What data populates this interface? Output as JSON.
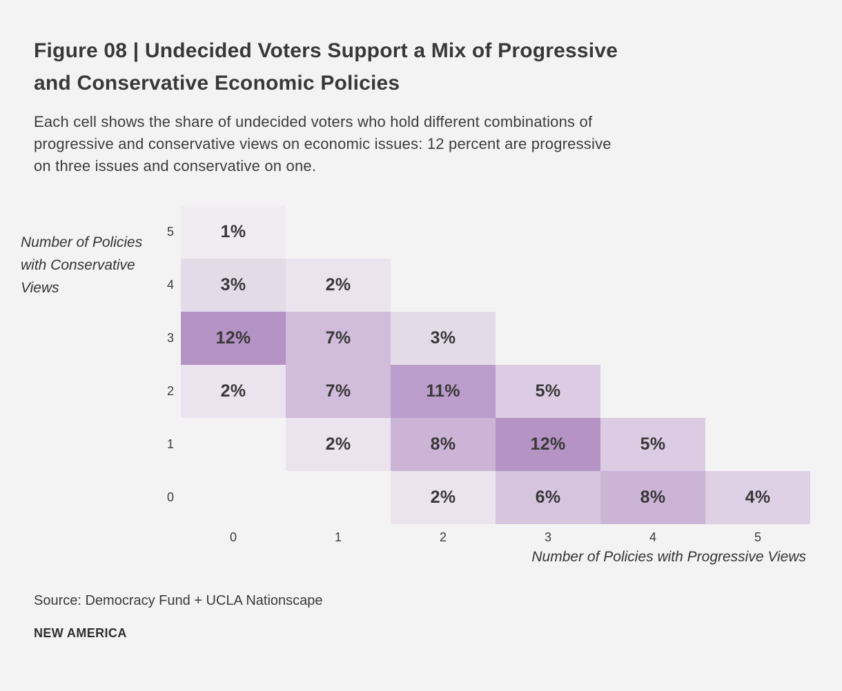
{
  "page": {
    "background": "#f4f3f4",
    "text_color": "#3a3a3a"
  },
  "header": {
    "title_lines": [
      "Figure 08 | Undecided Voters Support a Mix of Progressive",
      "and Conservative Economic Policies"
    ],
    "subtitle_lines": [
      "Each cell shows the share of undecided voters who hold different combinations of",
      "progressive and conservative views on economic issues: 12 percent are progressive",
      "on three issues and conservative on one."
    ]
  },
  "chart_data": {
    "type": "heatmap",
    "x_axis_label": "Number of Policies with Progressive Views",
    "y_axis_label_lines": [
      "Number of Policies",
      "with Conservative",
      "Views"
    ],
    "x_ticks": [
      "0",
      "1",
      "2",
      "3",
      "4",
      "5"
    ],
    "y_ticks_top_to_bottom": [
      "5",
      "4",
      "3",
      "2",
      "1",
      "0"
    ],
    "value_unit": "%",
    "cells": [
      {
        "progressive": 0,
        "conservative": 5,
        "value": 1,
        "label": "1%"
      },
      {
        "progressive": 0,
        "conservative": 4,
        "value": 3,
        "label": "3%"
      },
      {
        "progressive": 1,
        "conservative": 4,
        "value": 2,
        "label": "2%"
      },
      {
        "progressive": 0,
        "conservative": 3,
        "value": 12,
        "label": "12%"
      },
      {
        "progressive": 1,
        "conservative": 3,
        "value": 7,
        "label": "7%"
      },
      {
        "progressive": 2,
        "conservative": 3,
        "value": 3,
        "label": "3%"
      },
      {
        "progressive": 0,
        "conservative": 2,
        "value": 2,
        "label": "2%"
      },
      {
        "progressive": 1,
        "conservative": 2,
        "value": 7,
        "label": "7%"
      },
      {
        "progressive": 2,
        "conservative": 2,
        "value": 11,
        "label": "11%"
      },
      {
        "progressive": 3,
        "conservative": 2,
        "value": 5,
        "label": "5%"
      },
      {
        "progressive": 1,
        "conservative": 1,
        "value": 2,
        "label": "2%"
      },
      {
        "progressive": 2,
        "conservative": 1,
        "value": 8,
        "label": "8%"
      },
      {
        "progressive": 3,
        "conservative": 1,
        "value": 12,
        "label": "12%"
      },
      {
        "progressive": 4,
        "conservative": 1,
        "value": 5,
        "label": "5%"
      },
      {
        "progressive": 2,
        "conservative": 0,
        "value": 2,
        "label": "2%"
      },
      {
        "progressive": 3,
        "conservative": 0,
        "value": 6,
        "label": "6%"
      },
      {
        "progressive": 4,
        "conservative": 0,
        "value": 8,
        "label": "8%"
      },
      {
        "progressive": 5,
        "conservative": 0,
        "value": 4,
        "label": "4%"
      }
    ],
    "color_by_value": {
      "1": "#f1ecf2",
      "2": "#ebe3ee",
      "3": "#e4dbe9",
      "4": "#ded0e5",
      "5": "#dbcbe3",
      "6": "#d6c4df",
      "7": "#d2bcdc",
      "8": "#ccb4d7",
      "11": "#bb9cca",
      "12": "#b593c5"
    }
  },
  "footer": {
    "source": "Source: Democracy Fund + UCLA Nationscape",
    "brand": "NEW AMERICA"
  }
}
